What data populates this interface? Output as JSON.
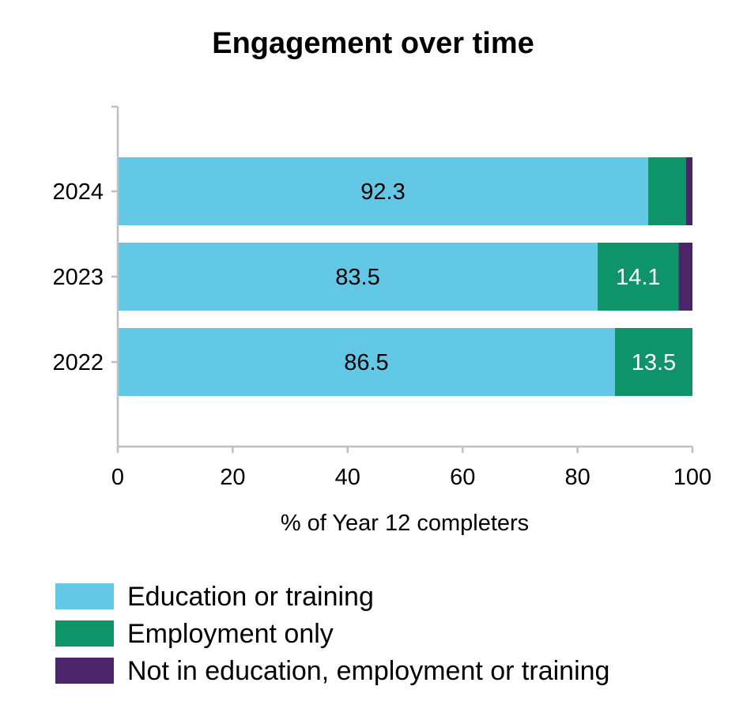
{
  "chart_data": {
    "type": "bar",
    "orientation": "horizontal",
    "stacked": true,
    "title": "Engagement over time",
    "xlabel": "% of Year 12 completers",
    "ylabel": "",
    "xlim": [
      0,
      100
    ],
    "xticks": [
      0,
      20,
      40,
      60,
      80,
      100
    ],
    "categories": [
      "2024",
      "2023",
      "2022"
    ],
    "series": [
      {
        "name": "Education or training",
        "color": "#62c8e6",
        "values": [
          92.3,
          83.5,
          86.5
        ],
        "labels": [
          "92.3",
          "83.5",
          "86.5"
        ],
        "label_color": "#000000"
      },
      {
        "name": "Employment only",
        "color": "#0e9468",
        "values": [
          6.6,
          14.1,
          13.5
        ],
        "labels": [
          "",
          "14.1",
          "13.5"
        ],
        "label_color": "#ffffff"
      },
      {
        "name": "Not in education, employment or training",
        "color": "#4b2568",
        "values": [
          1.1,
          2.4,
          0
        ],
        "labels": [
          "",
          "",
          ""
        ],
        "label_color": "#ffffff"
      }
    ],
    "grid": false,
    "legend_position": "bottom"
  }
}
